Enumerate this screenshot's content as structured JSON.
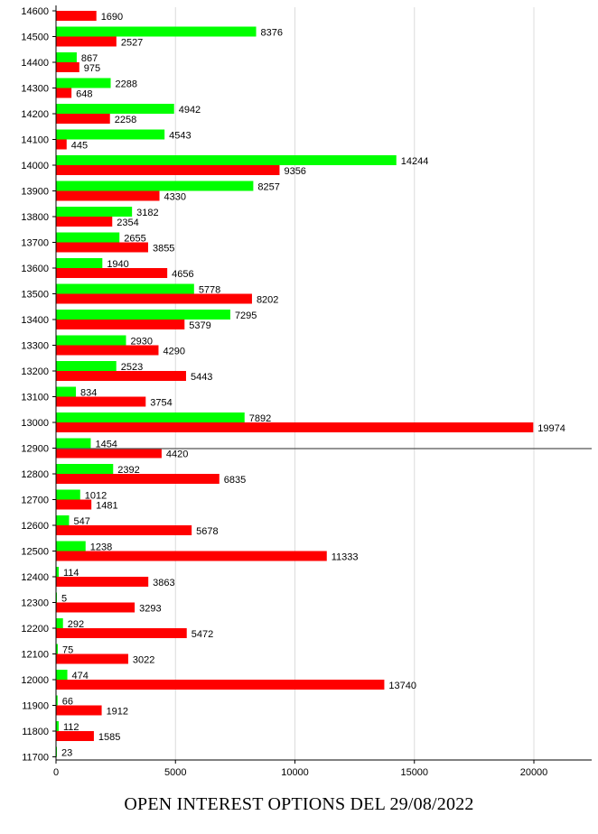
{
  "title": "OPEN INTEREST OPTIONS DEL 29/08/2022",
  "chart_data": {
    "type": "bar",
    "orientation": "horizontal",
    "title": "OPEN INTEREST OPTIONS DEL 29/08/2022",
    "categories": [
      "14600",
      "14500",
      "14400",
      "14300",
      "14200",
      "14100",
      "14000",
      "13900",
      "13800",
      "13700",
      "13600",
      "13500",
      "13400",
      "13300",
      "13200",
      "13100",
      "13000",
      "12900",
      "12800",
      "12700",
      "12600",
      "12500",
      "12400",
      "12300",
      "12200",
      "12100",
      "12000",
      "11900",
      "11800",
      "11700"
    ],
    "series": [
      {
        "color": "#00ff00",
        "values": [
          null,
          8376,
          867,
          2288,
          4942,
          4543,
          14244,
          8257,
          3182,
          2655,
          1940,
          5778,
          7295,
          2930,
          2523,
          834,
          7892,
          1454,
          2392,
          1012,
          547,
          1238,
          114,
          5,
          292,
          75,
          474,
          66,
          112,
          23
        ]
      },
      {
        "color": "#ff0000",
        "values": [
          1690,
          2527,
          975,
          648,
          2258,
          445,
          9356,
          4330,
          2354,
          3855,
          4656,
          8202,
          5379,
          4290,
          5443,
          3754,
          19974,
          4420,
          6835,
          1481,
          5678,
          11333,
          3863,
          3293,
          5472,
          3022,
          13740,
          1912,
          1585,
          null
        ]
      }
    ],
    "x_ticks": [
      0,
      5000,
      10000,
      15000,
      20000
    ],
    "xlim": [
      0,
      22500
    ],
    "grid": true,
    "reference_line_category": "12900"
  }
}
